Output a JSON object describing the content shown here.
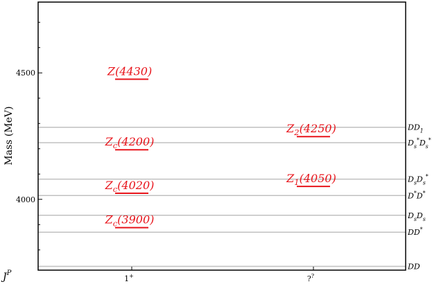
{
  "chart_data": {
    "type": "spectrum",
    "ylabel": "Mass (MeV)",
    "xlabel": "J^P",
    "ylim": [
      3720,
      4780
    ],
    "y_ticks": [
      4000,
      4500
    ],
    "categories": [
      {
        "base": "1",
        "sup": "+"
      },
      {
        "base": "?",
        "sup": "?"
      }
    ],
    "thresholds": [
      {
        "label": "DD",
        "sub": "",
        "mass": 3735
      },
      {
        "label": "DD*",
        "sub": "",
        "mass": 3870
      },
      {
        "label": "D_sD_s",
        "sub": "",
        "mass": 3937
      },
      {
        "label": "D*D*",
        "sub": "",
        "mass": 4015
      },
      {
        "label": "D_sD_s*",
        "sub": "",
        "mass": 4080
      },
      {
        "label": "D_s*D_s*",
        "sub": "",
        "mass": 4224
      },
      {
        "label": "DD_1",
        "sub": "",
        "mass": 4285
      }
    ],
    "states": [
      {
        "name": "Z(4430)",
        "category": 0,
        "mass": 4475
      },
      {
        "name": "Z_c(4200)",
        "category": 0,
        "mass": 4196
      },
      {
        "name": "Z_c(4020)",
        "category": 0,
        "mass": 4024
      },
      {
        "name": "Z_c(3900)",
        "category": 0,
        "mass": 3888
      },
      {
        "name": "Z_2(4250)",
        "category": 1,
        "mass": 4248
      },
      {
        "name": "Z_1(4050)",
        "category": 1,
        "mass": 4051
      }
    ]
  }
}
